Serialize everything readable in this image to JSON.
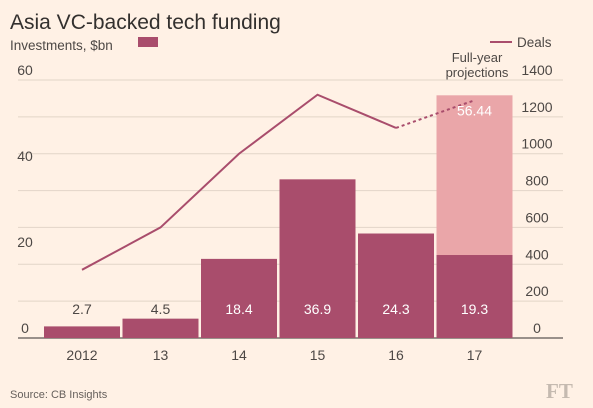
{
  "chart_data": {
    "type": "bar",
    "title": "Asia VC-backed tech funding",
    "left_axis_label": "Investments, $bn",
    "right_axis_label": "Deals",
    "categories": [
      "2012",
      "13",
      "14",
      "15",
      "16",
      "17"
    ],
    "series": [
      {
        "name": "Investments, $bn",
        "type": "bar",
        "axis": "left",
        "values": [
          2.7,
          4.5,
          18.4,
          36.9,
          24.3,
          19.3
        ],
        "labels": [
          "2.7",
          "4.5",
          "18.4",
          "36.9",
          "24.3",
          "19.3"
        ]
      },
      {
        "name": "Full-year projections",
        "type": "bar-projection",
        "axis": "left",
        "category": "17",
        "value": 56.44,
        "label": "56.44"
      },
      {
        "name": "Deals",
        "type": "line",
        "axis": "right",
        "values": [
          370,
          600,
          1000,
          1320,
          1140,
          1290
        ],
        "projected_from_index": 4
      }
    ],
    "left_ylim": [
      0,
      60
    ],
    "left_ticks": [
      "0",
      "20",
      "40",
      "60"
    ],
    "right_ylim": [
      0,
      1400
    ],
    "right_ticks": [
      "0",
      "200",
      "400",
      "600",
      "800",
      "1000",
      "1200",
      "1400"
    ],
    "projection_annotation": [
      "Full-year",
      "projections"
    ],
    "source": "Source: CB Insights",
    "logo": "FT",
    "colors": {
      "background": "#fff1e5",
      "bar": "#a94d6c",
      "projection_bar": "#eaa6a9",
      "line": "#a94d6c",
      "grid": "#e2d5c8",
      "text": "#4d4845"
    }
  }
}
